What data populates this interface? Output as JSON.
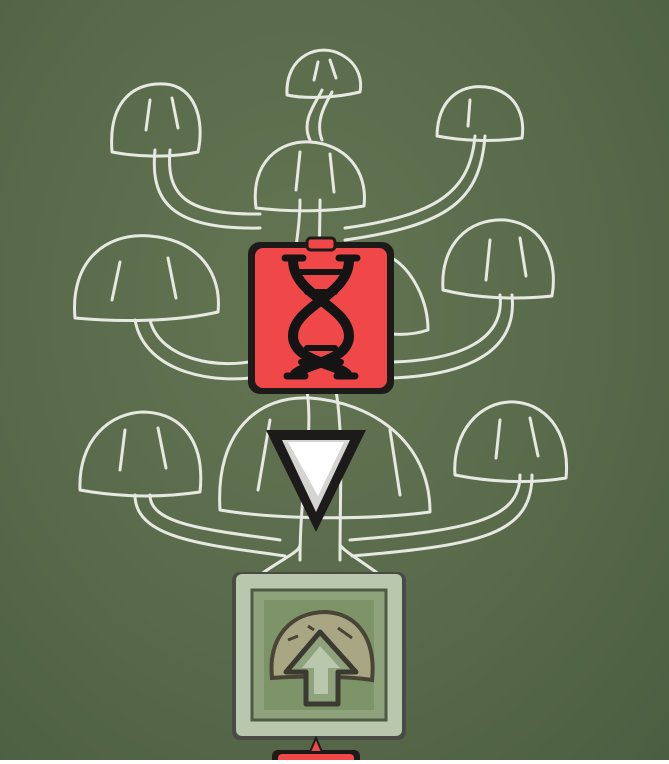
{
  "skill_tree": {
    "theme": "mushroom",
    "colors": {
      "background": "#5b6d4b",
      "chalk": "#f2f4ee",
      "gene_node": "#f04848",
      "upgrade_node_frame": "#b9c7ac",
      "upgrade_node_fill": "#7c9468"
    },
    "nodes": [
      {
        "id": "gene-node",
        "icon": "dna-icon",
        "state": "selected"
      },
      {
        "id": "path-arrow",
        "icon": "triangle-down-icon"
      },
      {
        "id": "upgrade-node",
        "icon": "mushroom-arrow-up-icon",
        "state": "unlocked"
      },
      {
        "id": "next-node",
        "icon": "star-icon",
        "state": "partially-visible"
      }
    ]
  }
}
